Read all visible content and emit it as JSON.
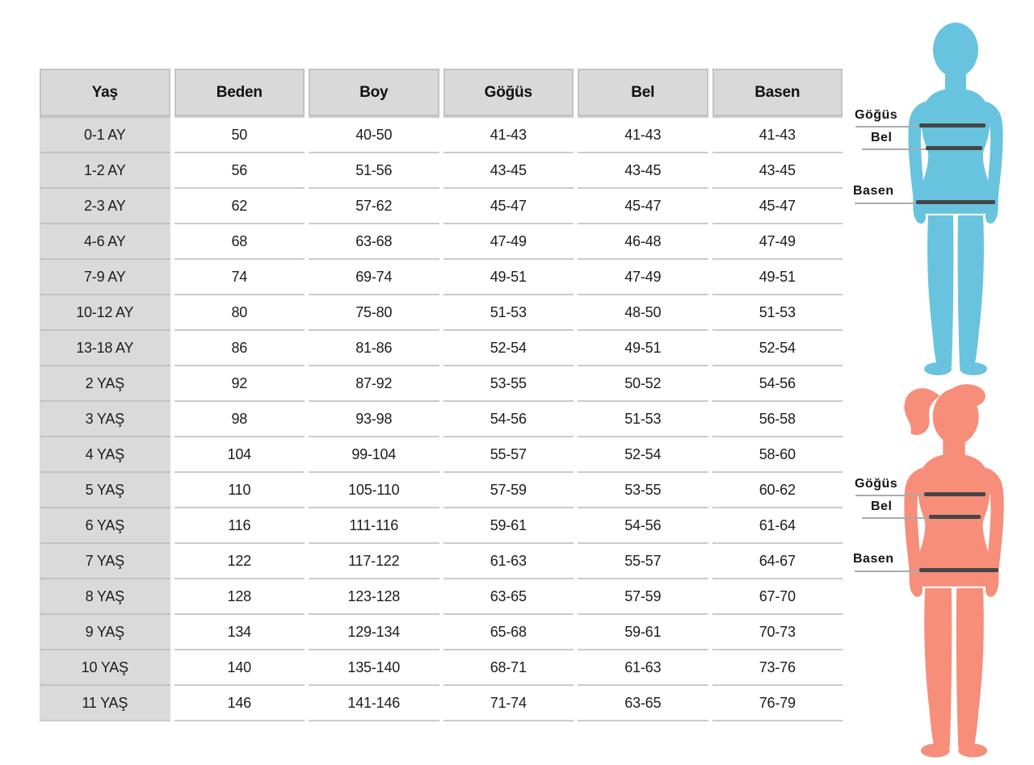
{
  "table": {
    "headers": [
      "Yaş",
      "Beden",
      "Boy",
      "Göğüs",
      "Bel",
      "Basen"
    ],
    "rows": [
      [
        "0-1 AY",
        "50",
        "40-50",
        "41-43",
        "41-43",
        "41-43"
      ],
      [
        "1-2 AY",
        "56",
        "51-56",
        "43-45",
        "43-45",
        "43-45"
      ],
      [
        "2-3 AY",
        "62",
        "57-62",
        "45-47",
        "45-47",
        "45-47"
      ],
      [
        "4-6 AY",
        "68",
        "63-68",
        "47-49",
        "46-48",
        "47-49"
      ],
      [
        "7-9 AY",
        "74",
        "69-74",
        "49-51",
        "47-49",
        "49-51"
      ],
      [
        "10-12 AY",
        "80",
        "75-80",
        "51-53",
        "48-50",
        "51-53"
      ],
      [
        "13-18 AY",
        "86",
        "81-86",
        "52-54",
        "49-51",
        "52-54"
      ],
      [
        "2 YAŞ",
        "92",
        "87-92",
        "53-55",
        "50-52",
        "54-56"
      ],
      [
        "3 YAŞ",
        "98",
        "93-98",
        "54-56",
        "51-53",
        "56-58"
      ],
      [
        "4 YAŞ",
        "104",
        "99-104",
        "55-57",
        "52-54",
        "58-60"
      ],
      [
        "5 YAŞ",
        "110",
        "105-110",
        "57-59",
        "53-55",
        "60-62"
      ],
      [
        "6 YAŞ",
        "116",
        "111-116",
        "59-61",
        "54-56",
        "61-64"
      ],
      [
        "7 YAŞ",
        "122",
        "117-122",
        "61-63",
        "55-57",
        "64-67"
      ],
      [
        "8 YAŞ",
        "128",
        "123-128",
        "63-65",
        "57-59",
        "67-70"
      ],
      [
        "9 YAŞ",
        "134",
        "129-134",
        "65-68",
        "59-61",
        "70-73"
      ],
      [
        "10 YAŞ",
        "140",
        "135-140",
        "68-71",
        "61-63",
        "73-76"
      ],
      [
        "11 YAŞ",
        "146",
        "141-146",
        "71-74",
        "63-65",
        "76-79"
      ]
    ]
  },
  "figures": {
    "boy": {
      "color": "#68c3de",
      "labels": {
        "chest": "Göğüs",
        "waist": "Bel",
        "hip": "Basen"
      }
    },
    "girl": {
      "color": "#f68e79",
      "labels": {
        "chest": "Göğüs",
        "waist": "Bel",
        "hip": "Basen"
      }
    }
  },
  "colors": {
    "header_bg": "#d9d9d9",
    "row_label_bg": "#dadada",
    "cell_border": "#cbcbcb",
    "measure_line_thick": "#454545",
    "measure_line_thin": "#ababab",
    "text": "#161616"
  }
}
